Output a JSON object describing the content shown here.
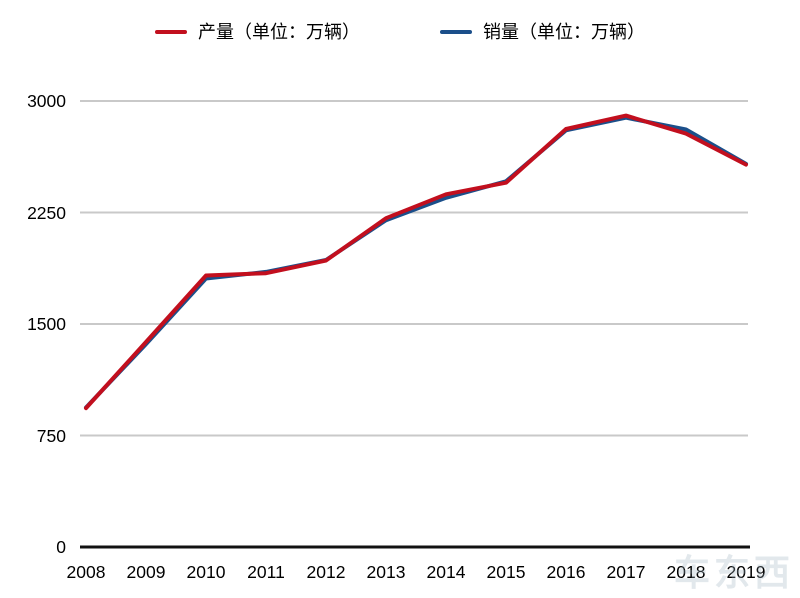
{
  "legend": {
    "items": [
      {
        "label": "产量（单位：万辆）"
      },
      {
        "label": "销量（单位：万辆）"
      }
    ]
  },
  "watermark": {
    "text": "车东西"
  },
  "colors": {
    "production": "#c20f1e",
    "sales": "#1b4f8a",
    "gridline": "#c9c9c9",
    "axis": "#111111",
    "text": "#000000"
  },
  "chart_data": {
    "type": "line",
    "title": "",
    "xlabel": "",
    "ylabel": "",
    "x_labels": [
      "2008",
      "2009",
      "2010",
      "2011",
      "2012",
      "2013",
      "2014",
      "2015",
      "2016",
      "2017",
      "2018",
      "2019"
    ],
    "series": [
      {
        "id": "production",
        "name": "产量（单位：万辆）",
        "color": "#c20f1e",
        "values": [
          934.5,
          1379.1,
          1826.5,
          1841.9,
          1927.2,
          2211.7,
          2372.3,
          2450.3,
          2811.9,
          2901.5,
          2780.9,
          2572.1
        ]
      },
      {
        "id": "sales",
        "name": "销量（单位：万辆）",
        "color": "#1b4f8a",
        "values": [
          938.1,
          1364.5,
          1806.2,
          1850.5,
          1930.6,
          2198.4,
          2349.2,
          2459.8,
          2802.8,
          2887.9,
          2808.1,
          2576.9
        ]
      }
    ],
    "ylim": [
      0,
      3000
    ],
    "yticks": [
      0,
      750,
      1500,
      2250,
      3000
    ],
    "grid": true,
    "legend_position": "top"
  }
}
